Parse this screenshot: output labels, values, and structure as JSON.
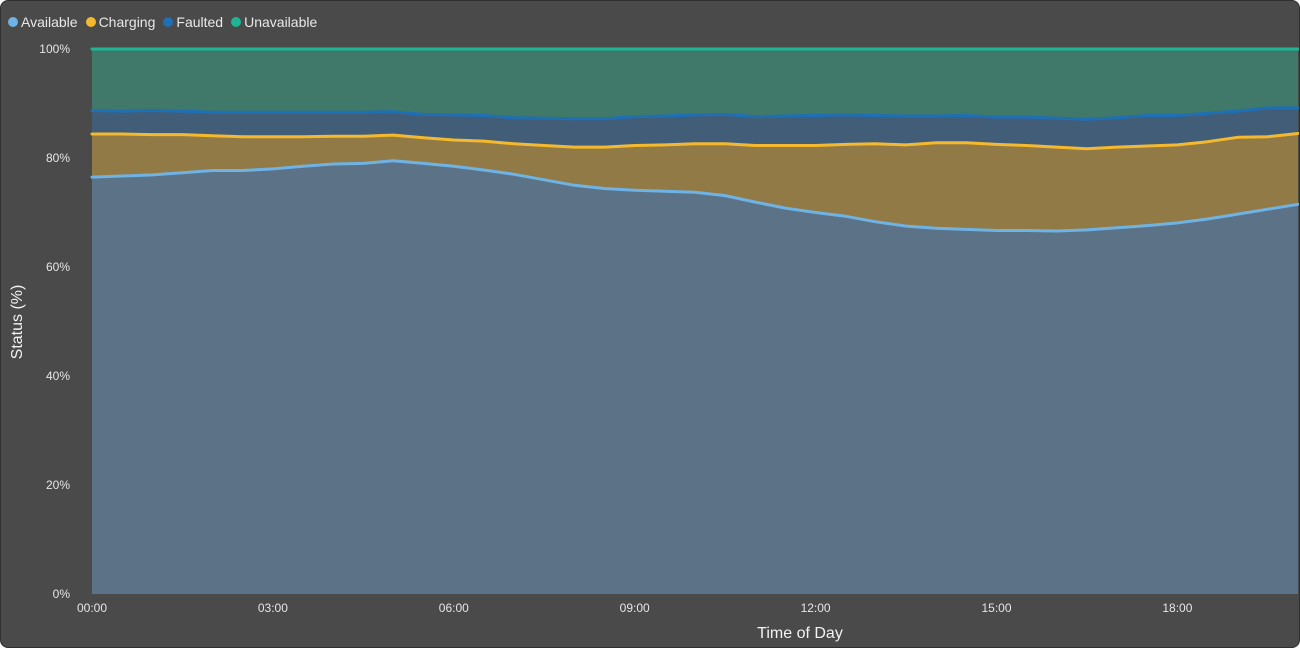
{
  "chart_data": {
    "type": "area",
    "stacked": true,
    "normalized_percent": true,
    "xlabel": "Time of Day",
    "ylabel": "Status (%)",
    "ylim": [
      0,
      100
    ],
    "y_ticks": [
      "0%",
      "20%",
      "40%",
      "60%",
      "80%",
      "100%"
    ],
    "x_ticks": [
      "00:00",
      "03:00",
      "06:00",
      "09:00",
      "12:00",
      "15:00",
      "18:00"
    ],
    "x_hours": [
      0,
      0.5,
      1,
      1.5,
      2,
      2.5,
      3,
      3.5,
      4,
      4.5,
      5,
      5.5,
      6,
      6.5,
      7,
      7.5,
      8,
      8.5,
      9,
      9.5,
      10,
      10.5,
      11,
      11.5,
      12,
      12.5,
      13,
      13.5,
      14,
      14.5,
      15,
      15.5,
      16,
      16.5,
      17,
      17.5,
      18,
      18.5,
      19,
      19.5,
      20
    ],
    "legend_position": "top-left",
    "grid": false,
    "series": [
      {
        "name": "Available",
        "color": "#6fb2e4",
        "fill": "#5c7387",
        "values": [
          76.5,
          76.7,
          76.9,
          77.3,
          77.7,
          77.7,
          78.0,
          78.5,
          78.9,
          79.0,
          79.5,
          79.0,
          78.5,
          77.8,
          77.0,
          76.0,
          75.0,
          74.4,
          74.1,
          73.9,
          73.7,
          73.1,
          71.9,
          70.8,
          70.0,
          69.3,
          68.3,
          67.5,
          67.1,
          66.9,
          66.7,
          66.7,
          66.6,
          66.8,
          67.2,
          67.6,
          68.1,
          68.8,
          69.7,
          70.6,
          71.5
        ]
      },
      {
        "name": "Charging",
        "color": "#f4b92e",
        "fill": "#917a46",
        "values": [
          7.9,
          7.7,
          7.4,
          7.0,
          6.4,
          6.2,
          5.9,
          5.4,
          5.1,
          5.0,
          4.7,
          4.7,
          4.8,
          5.3,
          5.6,
          6.3,
          7.0,
          7.6,
          8.2,
          8.5,
          8.9,
          9.5,
          10.4,
          11.5,
          12.3,
          13.2,
          14.3,
          14.9,
          15.7,
          15.9,
          15.8,
          15.6,
          15.4,
          14.9,
          14.8,
          14.6,
          14.3,
          14.2,
          14.1,
          13.3,
          13.0
        ]
      },
      {
        "name": "Faulted",
        "color": "#1f6fb5",
        "fill": "#425d78",
        "values": [
          4.3,
          4.2,
          4.4,
          4.3,
          4.3,
          4.5,
          4.5,
          4.5,
          4.4,
          4.4,
          4.3,
          4.3,
          4.6,
          4.7,
          4.8,
          5.0,
          5.2,
          5.2,
          5.3,
          5.3,
          5.3,
          5.4,
          5.3,
          5.4,
          5.5,
          5.4,
          5.2,
          5.3,
          4.9,
          5.0,
          5.0,
          5.2,
          5.3,
          5.4,
          5.4,
          5.6,
          5.4,
          5.2,
          4.8,
          5.3,
          4.7
        ]
      },
      {
        "name": "Unavailable",
        "color": "#1cb694",
        "fill": "#40786a",
        "values": [
          11.3,
          11.4,
          11.3,
          11.4,
          11.6,
          11.6,
          11.6,
          11.6,
          11.6,
          11.6,
          11.5,
          12.0,
          12.1,
          12.2,
          12.6,
          12.7,
          12.8,
          12.8,
          12.4,
          12.3,
          12.1,
          12.0,
          12.4,
          12.3,
          12.2,
          12.1,
          12.2,
          12.3,
          12.3,
          12.2,
          12.5,
          12.5,
          12.7,
          12.9,
          12.6,
          12.2,
          12.2,
          11.8,
          11.4,
          10.8,
          10.8
        ]
      }
    ]
  }
}
